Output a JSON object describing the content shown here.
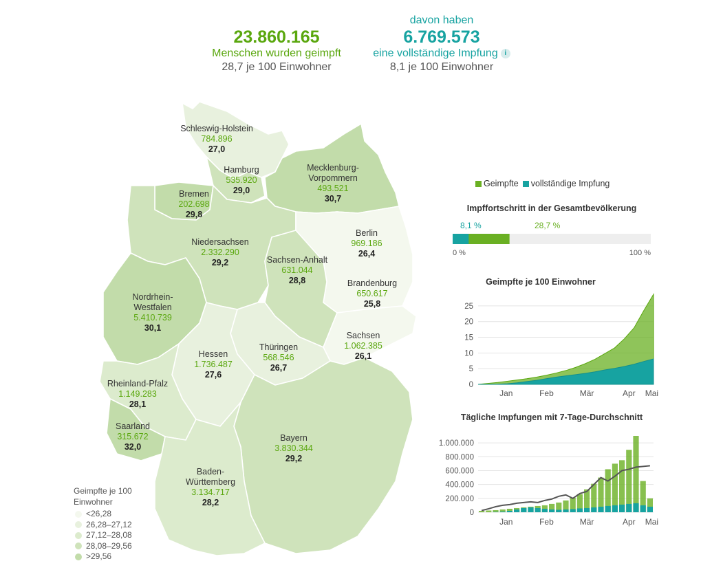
{
  "summary": {
    "vaccinated_total": "23.860.165",
    "vaccinated_label": "Menschen wurden geimpft",
    "vaccinated_per100": "28,7 je 100 Einwohner",
    "full_intro": "davon haben",
    "full_total": "6.769.573",
    "full_label": "eine vollständige Impfung",
    "full_per100": "8,1 je 100 Einwohner",
    "info_icon": "i"
  },
  "states": [
    {
      "name": "Schleswig-Holstein",
      "vaccinated": "784.896",
      "per100": "27,0"
    },
    {
      "name": "Hamburg",
      "vaccinated": "535.920",
      "per100": "29,0"
    },
    {
      "name": "Mecklenburg-Vorpommern",
      "name_line1": "Mecklenburg-",
      "name_line2": "Vorpommern",
      "vaccinated": "493.521",
      "per100": "30,7"
    },
    {
      "name": "Bremen",
      "vaccinated": "202.698",
      "per100": "29,8"
    },
    {
      "name": "Berlin",
      "vaccinated": "969.186",
      "per100": "26,4"
    },
    {
      "name": "Niedersachsen",
      "vaccinated": "2.332.290",
      "per100": "29,2"
    },
    {
      "name": "Sachsen-Anhalt",
      "vaccinated": "631.044",
      "per100": "28,8"
    },
    {
      "name": "Brandenburg",
      "vaccinated": "650.617",
      "per100": "25,8"
    },
    {
      "name": "Nordrhein-Westfalen",
      "name_line1": "Nordrhein-",
      "name_line2": "Westfalen",
      "vaccinated": "5.410.739",
      "per100": "30,1"
    },
    {
      "name": "Sachsen",
      "vaccinated": "1.062.385",
      "per100": "26,1"
    },
    {
      "name": "Hessen",
      "vaccinated": "1.736.487",
      "per100": "27,6"
    },
    {
      "name": "Thüringen",
      "vaccinated": "568.546",
      "per100": "26,7"
    },
    {
      "name": "Rheinland-Pfalz",
      "vaccinated": "1.149.283",
      "per100": "28,1"
    },
    {
      "name": "Saarland",
      "vaccinated": "315.672",
      "per100": "32,0"
    },
    {
      "name": "Bayern",
      "vaccinated": "3.830.344",
      "per100": "29,2"
    },
    {
      "name": "Baden-Württemberg",
      "name_line1": "Baden-",
      "name_line2": "Württemberg",
      "vaccinated": "3.134.717",
      "per100": "28,2"
    }
  ],
  "map_legend": {
    "title": "Geimpfte je 100 Einwohner",
    "classes": [
      {
        "label": "<26,28",
        "color": "#f4f8ee"
      },
      {
        "label": "26,28–27,12",
        "color": "#e8f1de"
      },
      {
        "label": "27,12–28,08",
        "color": "#dcebcd"
      },
      {
        "label": "28,08–29,56",
        "color": "#cfe3bb"
      },
      {
        "label": ">29,56",
        "color": "#c2dcaa"
      }
    ]
  },
  "colors": {
    "vaccinated": "#6ab023",
    "full": "#17a3a1",
    "bar_bg": "#eeeeee",
    "map_border": "#ffffff"
  },
  "series_legend": {
    "vaccinated": "Geimpfte",
    "full": "vollständige Impfung"
  },
  "chart_data": [
    {
      "type": "bar",
      "title": "Impffortschritt in der Gesamtbevölkerung",
      "orientation": "horizontal-stacked",
      "series": [
        {
          "name": "vollständige Impfung",
          "value": 8.1,
          "label": "8,1 %"
        },
        {
          "name": "Geimpfte",
          "value": 28.7,
          "label": "28,7 %"
        }
      ],
      "axis_min_label": "0 %",
      "axis_max_label": "100 %",
      "xlim": [
        0,
        100
      ]
    },
    {
      "type": "area",
      "title": "Geimpfte je 100 Einwohner",
      "x": [
        "2020-12-27",
        "2021-01-03",
        "2021-01-10",
        "2021-01-17",
        "2021-01-24",
        "2021-01-31",
        "2021-02-07",
        "2021-02-14",
        "2021-02-21",
        "2021-02-28",
        "2021-03-07",
        "2021-03-14",
        "2021-03-21",
        "2021-03-28",
        "2021-04-04",
        "2021-04-11",
        "2021-04-18",
        "2021-04-25",
        "2021-04-30"
      ],
      "series": [
        {
          "name": "Geimpfte",
          "values": [
            0.0,
            0.3,
            0.6,
            1.0,
            1.4,
            1.8,
            2.3,
            2.9,
            3.6,
            4.4,
            5.4,
            6.6,
            8.0,
            9.8,
            11.6,
            14.5,
            18.0,
            23.5,
            28.7
          ]
        },
        {
          "name": "vollständige Impfung",
          "values": [
            0.0,
            0.0,
            0.05,
            0.2,
            0.5,
            0.9,
            1.3,
            1.8,
            2.3,
            2.7,
            3.1,
            3.5,
            4.0,
            4.6,
            5.1,
            5.7,
            6.4,
            7.3,
            8.1
          ]
        }
      ],
      "ylim": [
        0,
        28.7
      ],
      "yticks": [
        "0",
        "5",
        "10",
        "15",
        "20",
        "25"
      ],
      "xticks": [
        "Jan",
        "Feb",
        "Mär",
        "Apr",
        "Mai"
      ]
    },
    {
      "type": "bar",
      "title": "Tägliche Impfungen mit 7-Tage-Durchschnitt",
      "x_start": "2020-12-27",
      "x_end": "2021-05-01",
      "series": [
        {
          "name": "Geimpfte",
          "values": [
            20000,
            25000,
            30000,
            40000,
            50000,
            60000,
            70000,
            80000,
            90000,
            100000,
            120000,
            140000,
            170000,
            210000,
            260000,
            330000,
            410000,
            500000,
            620000,
            700000,
            750000,
            900000,
            1100000,
            450000,
            200000
          ]
        },
        {
          "name": "vollständige Impfung",
          "values": [
            0,
            0,
            5000,
            10000,
            20000,
            40000,
            60000,
            70000,
            60000,
            50000,
            40000,
            35000,
            40000,
            45000,
            55000,
            60000,
            70000,
            80000,
            90000,
            100000,
            110000,
            120000,
            130000,
            100000,
            80000
          ]
        },
        {
          "name": "7-Tage-Durchschnitt",
          "values": [
            25000,
            50000,
            80000,
            100000,
            110000,
            130000,
            140000,
            150000,
            140000,
            170000,
            190000,
            230000,
            250000,
            200000,
            270000,
            300000,
            400000,
            500000,
            450000,
            520000,
            600000,
            620000,
            650000,
            660000,
            670000
          ]
        }
      ],
      "ylim": [
        0,
        1100000
      ],
      "yticks": [
        "0",
        "200.000",
        "400.000",
        "600.000",
        "800.000",
        "1.000.000"
      ],
      "xticks": [
        "Jan",
        "Feb",
        "Mär",
        "Apr",
        "Mai"
      ]
    }
  ]
}
